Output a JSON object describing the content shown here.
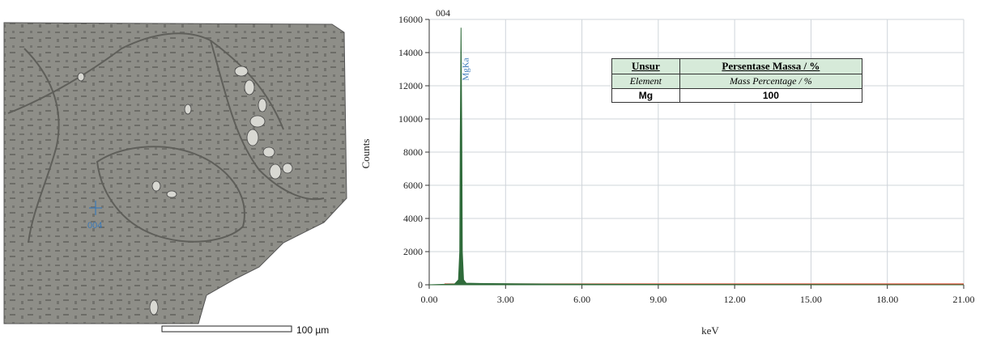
{
  "sem_image": {
    "spot_label": "004",
    "scale_bar_label": "100 µm"
  },
  "spectrum": {
    "title": "004",
    "peak_label": "MgKa"
  },
  "element_table": {
    "header_main_col1": "Unsur",
    "header_main_col2": "Persentase Massa / %",
    "header_sub_col1": "Element",
    "header_sub_col2": "Mass Percentage / %",
    "rows": [
      {
        "element": "Mg",
        "percentage": "100"
      }
    ]
  },
  "chart_data": {
    "type": "line",
    "title": "004",
    "xlabel": "keV",
    "ylabel": "Counts",
    "xlim": [
      0,
      21
    ],
    "ylim": [
      0,
      16000
    ],
    "x_ticks": [
      "0.00",
      "3.00",
      "6.00",
      "9.00",
      "12.00",
      "15.00",
      "18.00",
      "21.00"
    ],
    "y_ticks": [
      "0",
      "2000",
      "4000",
      "6000",
      "8000",
      "10000",
      "12000",
      "14000",
      "16000"
    ],
    "grid": true,
    "series": [
      {
        "name": "MgKa",
        "color": "#2f6b3a",
        "x": [
          0.0,
          1.0,
          1.15,
          1.2,
          1.22,
          1.25,
          1.28,
          1.3,
          1.35,
          1.45,
          2.0,
          5.0,
          10.0,
          21.0
        ],
        "y": [
          0,
          50,
          300,
          2000,
          9000,
          15500,
          9000,
          2000,
          300,
          100,
          80,
          40,
          20,
          0
        ]
      }
    ],
    "baseline_color": "#d9462b",
    "annotations": [
      {
        "text": "MgKa",
        "x": 1.25,
        "y": 13000
      }
    ]
  }
}
